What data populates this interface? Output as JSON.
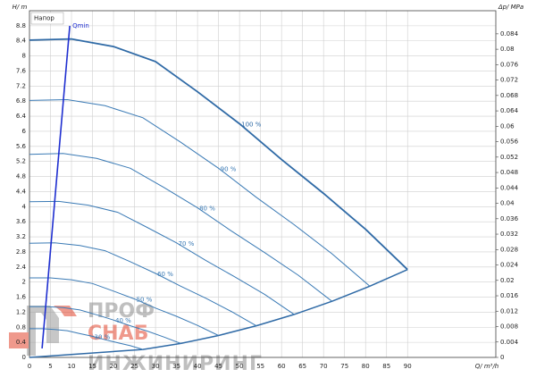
{
  "chart_data": {
    "type": "line",
    "title": "Напор",
    "x_label": "Q/ m³/h",
    "y_label": "H/ m",
    "y2_label": "Δp/ MPa",
    "xlim": [
      0,
      111
    ],
    "ylim": [
      0,
      9.2
    ],
    "y2lim": [
      0,
      0.09
    ],
    "xticks": [
      0,
      5,
      10,
      15,
      20,
      25,
      30,
      35,
      40,
      45,
      50,
      55,
      60,
      65,
      70,
      75,
      80,
      85,
      90
    ],
    "yticks": [
      0,
      0.4,
      0.8,
      1.2,
      1.6,
      2,
      2.4,
      2.8,
      3.2,
      3.6,
      4,
      4.4,
      4.8,
      5.2,
      5.6,
      6,
      6.4,
      6.8,
      7.2,
      7.6,
      8,
      8.4,
      8.8
    ],
    "y2ticks": [
      0,
      0.004,
      0.008,
      0.012,
      0.016,
      0.02,
      0.024,
      0.028,
      0.032,
      0.036,
      0.04,
      0.044,
      0.048,
      0.052,
      0.056,
      0.06,
      0.064,
      0.068,
      0.072,
      0.076,
      0.08,
      0.084
    ],
    "grid": true,
    "series": [
      {
        "name": "100 %",
        "color": "#2f6aa6",
        "width": 1.8,
        "x": [
          0,
          10,
          20,
          30,
          40,
          50,
          60,
          70,
          80,
          90
        ],
        "values": [
          8.42,
          8.45,
          8.25,
          7.85,
          7.05,
          6.2,
          5.25,
          4.35,
          3.4,
          2.33
        ]
      },
      {
        "name": "90 %",
        "color": "#3a7ab5",
        "width": 1,
        "x": [
          0,
          9,
          18,
          27,
          36,
          45,
          54,
          63,
          72,
          81
        ],
        "values": [
          6.82,
          6.84,
          6.68,
          6.36,
          5.71,
          5.02,
          4.25,
          3.52,
          2.75,
          1.89
        ]
      },
      {
        "name": "80 %",
        "color": "#3a7ab5",
        "width": 1,
        "x": [
          0,
          8,
          16,
          24,
          32,
          40,
          48,
          56,
          64,
          72
        ],
        "values": [
          5.39,
          5.41,
          5.28,
          5.02,
          4.51,
          3.97,
          3.36,
          2.78,
          2.18,
          1.49
        ]
      },
      {
        "name": "70 %",
        "color": "#3a7ab5",
        "width": 1,
        "x": [
          0,
          7,
          14,
          21,
          28,
          35,
          42,
          49,
          56,
          63
        ],
        "values": [
          4.13,
          4.14,
          4.04,
          3.85,
          3.45,
          3.04,
          2.57,
          2.13,
          1.67,
          1.14
        ]
      },
      {
        "name": "60 %",
        "color": "#3a7ab5",
        "width": 1,
        "x": [
          0,
          6,
          12,
          18,
          24,
          30,
          36,
          42,
          48,
          54
        ],
        "values": [
          3.03,
          3.04,
          2.97,
          2.83,
          2.54,
          2.23,
          1.89,
          1.57,
          1.22,
          0.84
        ]
      },
      {
        "name": "50 %",
        "color": "#3a7ab5",
        "width": 1,
        "x": [
          0,
          5,
          10,
          15,
          20,
          25,
          30,
          35,
          40,
          45
        ],
        "values": [
          2.11,
          2.11,
          2.06,
          1.96,
          1.76,
          1.55,
          1.31,
          1.09,
          0.85,
          0.58
        ]
      },
      {
        "name": "40 %",
        "color": "#3a7ab5",
        "width": 1,
        "x": [
          0,
          4,
          8,
          12,
          16,
          20,
          24,
          28,
          32,
          36
        ],
        "values": [
          1.35,
          1.35,
          1.32,
          1.26,
          1.13,
          0.99,
          0.84,
          0.7,
          0.54,
          0.37
        ]
      },
      {
        "name": "30 %",
        "color": "#3a7ab5",
        "width": 1,
        "x": [
          0,
          3,
          6,
          9,
          12,
          15,
          18,
          21,
          24,
          27
        ],
        "values": [
          0.76,
          0.76,
          0.74,
          0.71,
          0.63,
          0.56,
          0.47,
          0.39,
          0.31,
          0.21
        ]
      }
    ],
    "system_curve": {
      "color": "#2f6aa6",
      "x": [
        0,
        27,
        36,
        45,
        54,
        63,
        72,
        81,
        90
      ],
      "values": [
        0,
        0.21,
        0.37,
        0.58,
        0.84,
        1.14,
        1.49,
        1.89,
        2.33
      ]
    },
    "qmin": {
      "label": "Qmin",
      "color": "#1f2fd0",
      "x": [
        3,
        9.6
      ],
      "values": [
        0.24,
        8.8
      ]
    }
  },
  "watermark": {
    "line1": "ПРОФ",
    "line2": "СНАБ",
    "line3": "ИНЖИНИРИНГ"
  }
}
